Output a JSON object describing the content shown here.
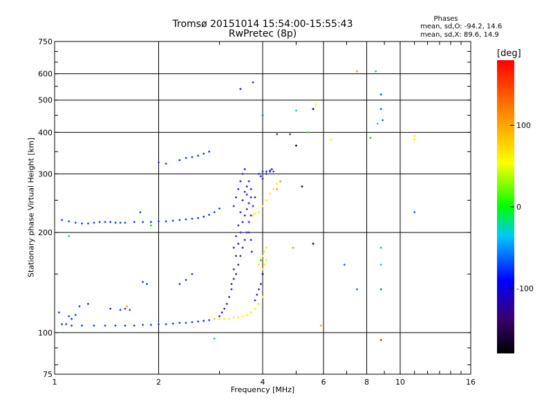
{
  "header": {
    "title_line1": "Tromsø 20151014 15:54:00-15:55:43",
    "title_line2": "RwPretec (8p)"
  },
  "phases_box": {
    "title": "Phases",
    "o_stats": "mean, sd,O: -94.2, 14.6",
    "x_stats": "mean, sd,X:  89.6, 14.9"
  },
  "colorbar": {
    "unit": "[deg]",
    "ticks": [
      "100",
      "0",
      "-100"
    ],
    "tick_values": [
      100,
      0,
      -100
    ],
    "range": [
      -180,
      180
    ]
  },
  "chart_data": {
    "type": "scatter",
    "xlabel": "Frequency [MHz]",
    "ylabel": "Stationary phase Virtual Height [km]",
    "x_scale": "log",
    "y_scale": "log",
    "xlim": [
      1,
      16
    ],
    "ylim": [
      75,
      750
    ],
    "x_ticks": [
      1,
      2,
      4,
      6,
      8,
      10,
      16
    ],
    "x_tick_labels": [
      "1",
      "2",
      "4",
      "6",
      "8",
      "10",
      "16"
    ],
    "y_ticks": [
      75,
      100,
      200,
      300,
      400,
      500,
      600,
      750
    ],
    "y_tick_labels": [
      "75",
      "100",
      "200",
      "300",
      "400",
      "500",
      "600",
      "750"
    ],
    "grid": true,
    "color_variable": "phase [deg]",
    "series": [
      {
        "color": "#1a3fd6",
        "points": [
          [
            1.05,
            106
          ],
          [
            1.08,
            106
          ],
          [
            1.12,
            105
          ],
          [
            1.2,
            105
          ],
          [
            1.3,
            105
          ],
          [
            1.4,
            105
          ],
          [
            1.5,
            105
          ],
          [
            1.6,
            105
          ],
          [
            1.7,
            105
          ],
          [
            1.8,
            105.5
          ],
          [
            1.9,
            105.5
          ],
          [
            2.0,
            106
          ],
          [
            2.1,
            106
          ],
          [
            2.2,
            106.5
          ],
          [
            2.3,
            107
          ],
          [
            2.4,
            107
          ],
          [
            2.5,
            107.5
          ],
          [
            2.6,
            108
          ],
          [
            2.7,
            108.5
          ],
          [
            2.8,
            109
          ],
          [
            2.9,
            110
          ],
          [
            1.05,
            218
          ],
          [
            1.1,
            216
          ],
          [
            1.15,
            214
          ],
          [
            1.2,
            213
          ],
          [
            1.25,
            213
          ],
          [
            1.3,
            214
          ],
          [
            1.35,
            215
          ],
          [
            1.4,
            215
          ],
          [
            1.45,
            215
          ],
          [
            1.5,
            214
          ],
          [
            1.55,
            214
          ],
          [
            1.6,
            214
          ],
          [
            1.7,
            215
          ],
          [
            1.8,
            215
          ],
          [
            1.9,
            215
          ],
          [
            2.0,
            216
          ],
          [
            2.1,
            216
          ],
          [
            2.2,
            217
          ],
          [
            2.3,
            218
          ],
          [
            2.4,
            219
          ],
          [
            2.5,
            220
          ],
          [
            2.6,
            221
          ],
          [
            2.7,
            223
          ],
          [
            2.8,
            226
          ],
          [
            2.9,
            230
          ],
          [
            3.0,
            236
          ],
          [
            2.0,
            325
          ],
          [
            2.1,
            322
          ],
          [
            2.3,
            330
          ],
          [
            2.4,
            335
          ],
          [
            2.5,
            337
          ],
          [
            2.6,
            340
          ],
          [
            2.7,
            345
          ],
          [
            2.8,
            350
          ],
          [
            1.18,
            120
          ],
          [
            1.25,
            122
          ],
          [
            1.45,
            118
          ],
          [
            1.55,
            117
          ],
          [
            1.6,
            118
          ],
          [
            1.65,
            117
          ],
          [
            1.8,
            142
          ],
          [
            1.85,
            140
          ],
          [
            1.77,
            230
          ],
          [
            2.3,
            140
          ],
          [
            2.4,
            144
          ],
          [
            2.5,
            150
          ],
          [
            1.1,
            112
          ],
          [
            1.12,
            110
          ],
          [
            1.15,
            113
          ],
          [
            1.03,
            115
          ],
          [
            4.4,
            395
          ],
          [
            4.0,
            305
          ],
          [
            4.1,
            305
          ],
          [
            4.2,
            307
          ],
          [
            4.3,
            305
          ],
          [
            4.8,
            395
          ]
        ]
      },
      {
        "color": "#3a1fb8",
        "points": [
          [
            3.0,
            112
          ],
          [
            3.05,
            115
          ],
          [
            3.1,
            118
          ],
          [
            3.15,
            122
          ],
          [
            3.2,
            128
          ],
          [
            3.25,
            135
          ],
          [
            3.3,
            145
          ],
          [
            3.35,
            150
          ],
          [
            3.4,
            160
          ],
          [
            3.45,
            170
          ],
          [
            3.5,
            180
          ],
          [
            3.55,
            190
          ],
          [
            3.6,
            200
          ],
          [
            3.65,
            215
          ],
          [
            3.7,
            225
          ],
          [
            3.75,
            240
          ],
          [
            3.8,
            255
          ],
          [
            3.25,
            140
          ],
          [
            3.3,
            155
          ],
          [
            3.35,
            170
          ],
          [
            3.4,
            185
          ],
          [
            3.45,
            200
          ],
          [
            3.5,
            215
          ],
          [
            3.55,
            225
          ],
          [
            3.6,
            235
          ],
          [
            3.65,
            245
          ],
          [
            3.7,
            255
          ],
          [
            3.3,
            180
          ],
          [
            3.35,
            195
          ],
          [
            3.4,
            210
          ],
          [
            3.45,
            230
          ],
          [
            3.5,
            250
          ],
          [
            3.55,
            265
          ],
          [
            3.6,
            275
          ],
          [
            3.65,
            285
          ],
          [
            3.3,
            240
          ],
          [
            3.35,
            255
          ],
          [
            3.4,
            270
          ],
          [
            3.45,
            285
          ],
          [
            3.5,
            300
          ],
          [
            3.55,
            310
          ],
          [
            3.45,
            540
          ],
          [
            3.75,
            565
          ],
          [
            3.9,
            300
          ],
          [
            3.95,
            295
          ],
          [
            4.0,
            290
          ],
          [
            4.1,
            300
          ],
          [
            4.2,
            305
          ],
          [
            4.25,
            310
          ],
          [
            3.8,
            125
          ],
          [
            3.85,
            130
          ],
          [
            3.9,
            135
          ],
          [
            3.95,
            140
          ],
          [
            4.0,
            150
          ],
          [
            3.7,
            270
          ],
          [
            3.6,
            260
          ],
          [
            3.65,
            200
          ],
          [
            3.7,
            190
          ],
          [
            3.72,
            175
          ]
        ]
      },
      {
        "color": "#ffee00",
        "points": [
          [
            2.9,
            110
          ],
          [
            3.0,
            110
          ],
          [
            3.1,
            110
          ],
          [
            3.2,
            110
          ],
          [
            3.3,
            111
          ],
          [
            3.4,
            111
          ],
          [
            3.5,
            112
          ],
          [
            3.6,
            113
          ],
          [
            3.7,
            115
          ],
          [
            3.8,
            118
          ],
          [
            3.9,
            122
          ],
          [
            4.0,
            128
          ],
          [
            3.9,
            160
          ],
          [
            3.95,
            165
          ],
          [
            4.0,
            170
          ],
          [
            4.05,
            175
          ],
          [
            4.1,
            180
          ],
          [
            4.0,
            155
          ],
          [
            4.05,
            160
          ],
          [
            4.1,
            165
          ],
          [
            3.75,
            225
          ],
          [
            3.8,
            228
          ],
          [
            3.9,
            230
          ],
          [
            4.0,
            240
          ],
          [
            4.1,
            250
          ],
          [
            4.2,
            262
          ],
          [
            4.3,
            270
          ],
          [
            4.4,
            280
          ],
          [
            5.7,
            485
          ],
          [
            6.3,
            380
          ],
          [
            11.0,
            390
          ],
          [
            11.0,
            380
          ]
        ]
      },
      {
        "color": "#ff9900",
        "points": [
          [
            4.4,
            270
          ],
          [
            4.5,
            285
          ],
          [
            7.5,
            610
          ],
          [
            5.9,
            105
          ],
          [
            1.62,
            120
          ],
          [
            4.9,
            180
          ]
        ]
      },
      {
        "color": "#00ccdd",
        "points": [
          [
            8.5,
            610
          ],
          [
            8.8,
            180
          ],
          [
            8.8,
            160
          ],
          [
            5.0,
            465
          ],
          [
            2.9,
            96
          ],
          [
            1.1,
            195
          ],
          [
            8.6,
            425
          ]
        ]
      },
      {
        "color": "#1060ff",
        "points": [
          [
            8.8,
            520
          ],
          [
            8.8,
            470
          ],
          [
            8.9,
            435
          ],
          [
            6.9,
            160
          ],
          [
            7.5,
            135
          ],
          [
            8.8,
            135
          ],
          [
            11.0,
            230
          ],
          [
            4.0,
            450
          ]
        ]
      },
      {
        "color": "#220044",
        "points": [
          [
            5.6,
            470
          ],
          [
            5.6,
            185
          ],
          [
            4.0,
            150
          ],
          [
            5.2,
            275
          ],
          [
            5.0,
            365
          ]
        ]
      },
      {
        "color": "#cc3300",
        "points": [
          [
            8.8,
            95
          ]
        ]
      },
      {
        "color": "#33cc00",
        "points": [
          [
            8.2,
            385
          ],
          [
            3.95,
            165
          ],
          [
            5.4,
            400
          ],
          [
            1.9,
            210
          ]
        ]
      }
    ]
  }
}
